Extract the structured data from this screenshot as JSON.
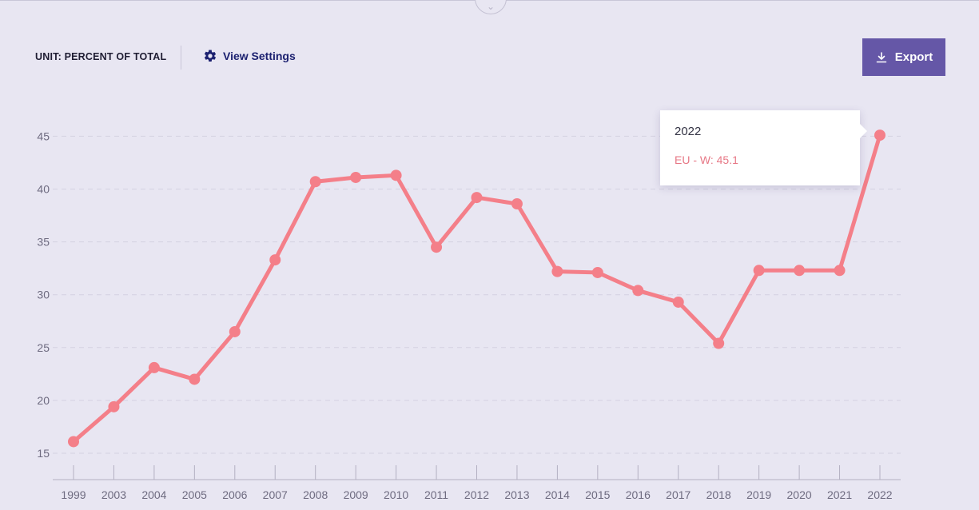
{
  "toolbar": {
    "unit_label": "UNIT: PERCENT OF TOTAL",
    "view_settings_label": "View Settings",
    "export_label": "Export"
  },
  "tooltip": {
    "title": "2022",
    "series_value": "EU - W: 45.1"
  },
  "colors": {
    "background": "#e8e6f2",
    "series": "#f47f89",
    "accent": "#6557a7",
    "link": "#1c2170"
  },
  "icons": {
    "settings": "gear-icon",
    "export": "download-icon",
    "collapse": "chevron-down-icon"
  },
  "chart_data": {
    "type": "line",
    "categories": [
      "1999",
      "2003",
      "2004",
      "2005",
      "2006",
      "2007",
      "2008",
      "2009",
      "2010",
      "2011",
      "2012",
      "2013",
      "2014",
      "2015",
      "2016",
      "2017",
      "2018",
      "2019",
      "2020",
      "2021",
      "2022"
    ],
    "series": [
      {
        "name": "EU - W",
        "values": [
          16.1,
          19.4,
          23.1,
          22.0,
          26.5,
          33.3,
          40.7,
          41.1,
          41.3,
          34.5,
          39.2,
          38.6,
          32.2,
          32.1,
          30.4,
          29.3,
          25.4,
          32.3,
          32.3,
          32.3,
          45.1
        ]
      }
    ],
    "yticks": [
      15,
      20,
      25,
      30,
      35,
      40,
      45
    ],
    "ylim": [
      13,
      47
    ],
    "grid": true,
    "title": "",
    "xlabel": "",
    "ylabel": ""
  }
}
